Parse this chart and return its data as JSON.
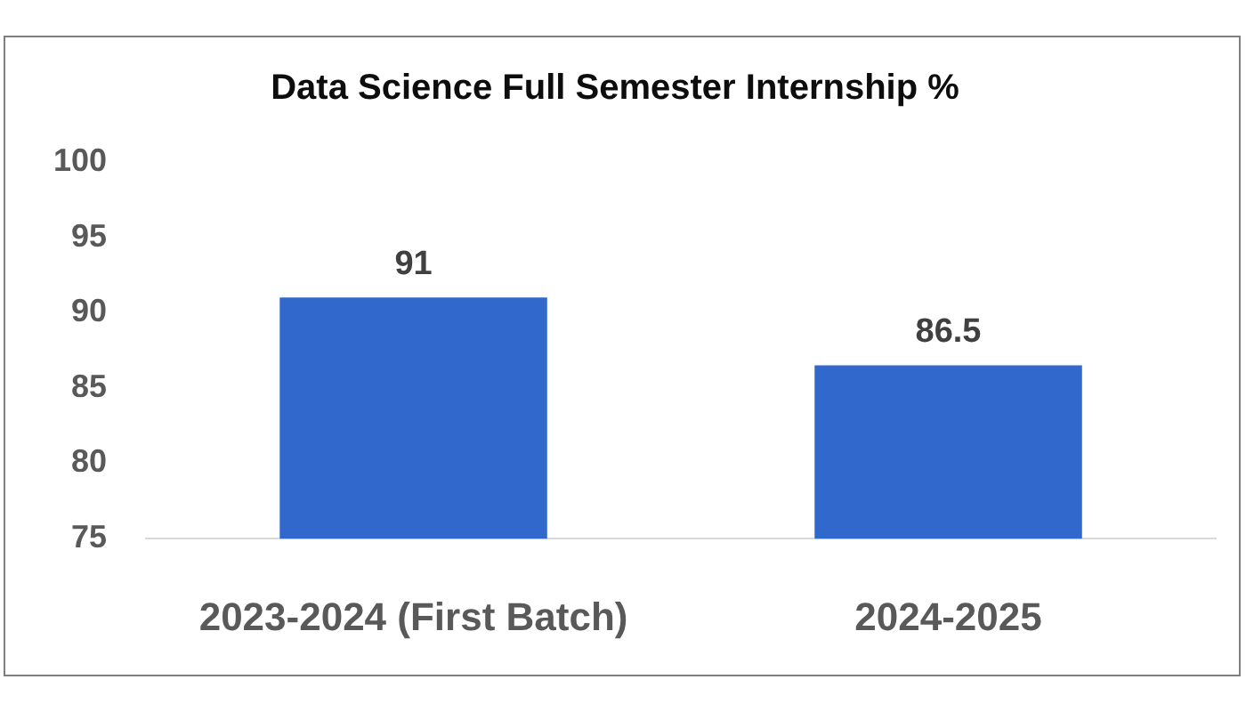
{
  "chart_data": {
    "type": "bar",
    "title": "Data Science Full Semester Internship %",
    "categories": [
      "2023-2024 (First Batch)",
      "2024-2025"
    ],
    "values": [
      91,
      86.5
    ],
    "color": "#3068cc",
    "ylim": [
      75,
      100
    ],
    "yticks": [
      75,
      80,
      85,
      90,
      95,
      100
    ],
    "grid": false,
    "legend": false,
    "data_labels": true
  }
}
